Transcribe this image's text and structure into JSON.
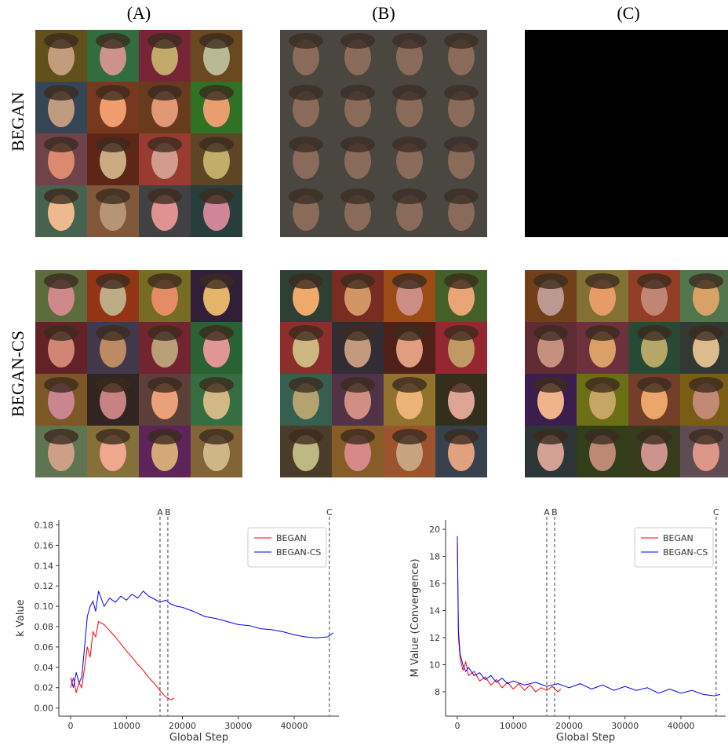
{
  "figure": {
    "columns": [
      "(A)",
      "(B)",
      "(C)"
    ],
    "rows": [
      "BEGAN",
      "BEGAN-CS"
    ]
  },
  "chart_data": [
    {
      "type": "line",
      "ylabel": "k Value",
      "xlabel": "Global Step",
      "legend": "upper right",
      "xlim": [
        -2100,
        48000
      ],
      "xticks": [
        0,
        10000,
        20000,
        30000,
        40000
      ],
      "ylim": [
        -0.008,
        0.185
      ],
      "yticks": [
        {
          "value": 0,
          "label": "0.00"
        },
        {
          "value": 0.02,
          "label": "0.02"
        },
        {
          "value": 0.04,
          "label": "0.04"
        },
        {
          "value": 0.06,
          "label": "0.06"
        },
        {
          "value": 0.08,
          "label": "0.08"
        },
        {
          "value": 0.1,
          "label": "0.10"
        },
        {
          "value": 0.12,
          "label": "0.12"
        },
        {
          "value": 0.14,
          "label": "0.14"
        },
        {
          "value": 0.16,
          "label": "0.16"
        },
        {
          "value": 0.18,
          "label": "0.18"
        }
      ],
      "markers": [
        {
          "label": "A",
          "x": 16000
        },
        {
          "label": "B",
          "x": 17400
        },
        {
          "label": "C",
          "x": 46300
        }
      ],
      "series": [
        {
          "name": "BEGAN",
          "color": "#ff0000",
          "x": [
            0,
            500,
            1000,
            1500,
            2000,
            2500,
            3000,
            3500,
            4000,
            4500,
            5000,
            6000,
            7000,
            8000,
            9000,
            10000,
            11000,
            12000,
            13000,
            14000,
            15000,
            16000,
            17000,
            18000,
            18500
          ],
          "values": [
            0.02,
            0.03,
            0.015,
            0.025,
            0.02,
            0.04,
            0.06,
            0.05,
            0.075,
            0.07,
            0.085,
            0.082,
            0.076,
            0.07,
            0.063,
            0.056,
            0.05,
            0.043,
            0.037,
            0.03,
            0.024,
            0.017,
            0.011,
            0.008,
            0.01
          ]
        },
        {
          "name": "BEGAN-CS",
          "color": "#0000ff",
          "x": [
            0,
            500,
            1000,
            1500,
            2000,
            2500,
            3000,
            3500,
            4000,
            4500,
            5000,
            6000,
            7000,
            8000,
            9000,
            10000,
            11000,
            12000,
            13000,
            14000,
            15000,
            16000,
            17000,
            18000,
            19000,
            20000,
            22000,
            24000,
            26000,
            28000,
            30000,
            32000,
            34000,
            36000,
            38000,
            40000,
            42000,
            44000,
            46000,
            47000
          ],
          "values": [
            0.03,
            0.02,
            0.035,
            0.025,
            0.03,
            0.06,
            0.09,
            0.1,
            0.105,
            0.095,
            0.115,
            0.1,
            0.108,
            0.104,
            0.11,
            0.106,
            0.112,
            0.108,
            0.115,
            0.11,
            0.107,
            0.104,
            0.106,
            0.102,
            0.1,
            0.099,
            0.095,
            0.09,
            0.088,
            0.085,
            0.082,
            0.081,
            0.078,
            0.077,
            0.075,
            0.072,
            0.07,
            0.069,
            0.07,
            0.074
          ]
        }
      ]
    },
    {
      "type": "line",
      "ylabel": "M Value (Convergence)",
      "xlabel": "Global Step",
      "legend": "upper right",
      "xlim": [
        -2100,
        48000
      ],
      "xticks": [
        0,
        10000,
        20000,
        30000,
        40000
      ],
      "ylim": [
        6.2,
        20.7
      ],
      "yticks": [
        8,
        10,
        12,
        14,
        16,
        18,
        20
      ],
      "markers": [
        {
          "label": "A",
          "x": 16000
        },
        {
          "label": "B",
          "x": 17400
        },
        {
          "label": "C",
          "x": 46300
        }
      ],
      "series": [
        {
          "name": "BEGAN",
          "color": "#ff0000",
          "x": [
            0,
            200,
            500,
            1000,
            1500,
            2000,
            3000,
            4000,
            5000,
            6000,
            7000,
            8000,
            9000,
            10000,
            11000,
            12000,
            13000,
            14000,
            15000,
            16000,
            17000,
            18000,
            18500
          ],
          "values": [
            19,
            12,
            10.5,
            9.6,
            10.2,
            9.2,
            9.5,
            8.8,
            9.1,
            8.5,
            8.9,
            8.3,
            8.7,
            8.2,
            8.6,
            8.1,
            8.5,
            8,
            8.3,
            8.1,
            8.4,
            8,
            8.2
          ]
        },
        {
          "name": "BEGAN-CS",
          "color": "#0000ff",
          "x": [
            0,
            200,
            500,
            1000,
            1500,
            2000,
            3000,
            4000,
            5000,
            6000,
            7000,
            8000,
            9000,
            10000,
            12000,
            14000,
            16000,
            18000,
            20000,
            22000,
            24000,
            26000,
            28000,
            30000,
            32000,
            34000,
            36000,
            38000,
            40000,
            42000,
            44000,
            46000,
            47000
          ],
          "values": [
            19.5,
            12.5,
            10.8,
            10,
            9.5,
            9.8,
            9.2,
            9.4,
            8.9,
            9.2,
            8.7,
            9,
            8.6,
            8.8,
            8.5,
            8.7,
            8.4,
            8.6,
            8.3,
            8.6,
            8.2,
            8.5,
            8.1,
            8.4,
            8.1,
            8.3,
            7.9,
            8.2,
            7.9,
            8.1,
            7.8,
            7.7,
            7.8
          ]
        }
      ]
    }
  ]
}
